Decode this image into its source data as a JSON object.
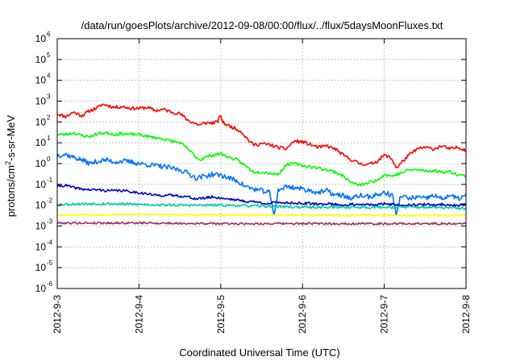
{
  "chart_data": {
    "type": "line",
    "title": "/data/run/goesPlots/archive/2012-09-08/00:00/flux/../flux/5daysMoonFluxes.txt",
    "xlabel": "Coordinated Universal Time (UTC)",
    "ylabel": "protons/cm2-s-sr-MeV",
    "ylabel_parts": {
      "base": "protons/cm",
      "sup": "2",
      "rest": "-s-sr-MeV"
    },
    "yscale": "log",
    "ylim": [
      1e-06,
      1000000.0
    ],
    "xlim": [
      0,
      5
    ],
    "grid": true,
    "y_ticks": [
      {
        "value": 1e-06,
        "base": "10",
        "exp": "-6"
      },
      {
        "value": 1e-05,
        "base": "10",
        "exp": "-5"
      },
      {
        "value": 0.0001,
        "base": "10",
        "exp": "-4"
      },
      {
        "value": 0.001,
        "base": "10",
        "exp": "-3"
      },
      {
        "value": 0.01,
        "base": "10",
        "exp": "-2"
      },
      {
        "value": 0.1,
        "base": "10",
        "exp": "-1"
      },
      {
        "value": 1,
        "base": "10",
        "exp": "0"
      },
      {
        "value": 10.0,
        "base": "10",
        "exp": "1"
      },
      {
        "value": 100.0,
        "base": "10",
        "exp": "2"
      },
      {
        "value": 1000.0,
        "base": "10",
        "exp": "3"
      },
      {
        "value": 10000.0,
        "base": "10",
        "exp": "4"
      },
      {
        "value": 100000.0,
        "base": "10",
        "exp": "5"
      },
      {
        "value": 1000000.0,
        "base": "10",
        "exp": "6"
      }
    ],
    "x_ticks": [
      {
        "value": 0,
        "label": "2012-9-3"
      },
      {
        "value": 1,
        "label": "2012-9-4"
      },
      {
        "value": 2,
        "label": "2012-9-5"
      },
      {
        "value": 3,
        "label": "2012-9-6"
      },
      {
        "value": 4,
        "label": "2012-9-7"
      },
      {
        "value": 5,
        "label": "2012-9-8"
      }
    ],
    "series": [
      {
        "color": "#ff0000",
        "width": 1.6,
        "noise": 0.08,
        "seed": 11,
        "points": [
          [
            0,
            250
          ],
          [
            0.1,
            180
          ],
          [
            0.2,
            300
          ],
          [
            0.3,
            200
          ],
          [
            0.4,
            350
          ],
          [
            0.5,
            500
          ],
          [
            0.55,
            700
          ],
          [
            0.6,
            650
          ],
          [
            0.7,
            500
          ],
          [
            0.8,
            550
          ],
          [
            0.9,
            450
          ],
          [
            1.0,
            450
          ],
          [
            1.1,
            500
          ],
          [
            1.2,
            350
          ],
          [
            1.3,
            400
          ],
          [
            1.4,
            300
          ],
          [
            1.5,
            250
          ],
          [
            1.6,
            120
          ],
          [
            1.7,
            80
          ],
          [
            1.75,
            70
          ],
          [
            1.8,
            90
          ],
          [
            1.9,
            90
          ],
          [
            1.96,
            100
          ],
          [
            2.0,
            220
          ],
          [
            2.02,
            100
          ],
          [
            2.08,
            70
          ],
          [
            2.15,
            55
          ],
          [
            2.25,
            35
          ],
          [
            2.3,
            20
          ],
          [
            2.35,
            12
          ],
          [
            2.4,
            8
          ],
          [
            2.5,
            9
          ],
          [
            2.6,
            8
          ],
          [
            2.7,
            6
          ],
          [
            2.8,
            5
          ],
          [
            2.85,
            8
          ],
          [
            2.9,
            12
          ],
          [
            3.0,
            11
          ],
          [
            3.1,
            8
          ],
          [
            3.2,
            6
          ],
          [
            3.3,
            7
          ],
          [
            3.4,
            5
          ],
          [
            3.5,
            2.5
          ],
          [
            3.6,
            1.5
          ],
          [
            3.7,
            1.0
          ],
          [
            3.8,
            0.9
          ],
          [
            3.9,
            1.2
          ],
          [
            4.0,
            2.5
          ],
          [
            4.05,
            2.2
          ],
          [
            4.1,
            1.5
          ],
          [
            4.15,
            0.6
          ],
          [
            4.2,
            1.0
          ],
          [
            4.3,
            2.5
          ],
          [
            4.4,
            5
          ],
          [
            4.5,
            6
          ],
          [
            4.6,
            5
          ],
          [
            4.7,
            7
          ],
          [
            4.8,
            5
          ],
          [
            4.9,
            6
          ],
          [
            5.0,
            4.5
          ]
        ]
      },
      {
        "color": "#00ff00",
        "width": 1.6,
        "noise": 0.07,
        "seed": 23,
        "points": [
          [
            0,
            25
          ],
          [
            0.1,
            25
          ],
          [
            0.2,
            30
          ],
          [
            0.3,
            22
          ],
          [
            0.4,
            20
          ],
          [
            0.5,
            28
          ],
          [
            0.6,
            30
          ],
          [
            0.7,
            25
          ],
          [
            0.8,
            28
          ],
          [
            0.9,
            25
          ],
          [
            1.0,
            25
          ],
          [
            1.1,
            20
          ],
          [
            1.2,
            18
          ],
          [
            1.3,
            15
          ],
          [
            1.4,
            12
          ],
          [
            1.5,
            10
          ],
          [
            1.6,
            5
          ],
          [
            1.7,
            2
          ],
          [
            1.75,
            1.5
          ],
          [
            1.8,
            2
          ],
          [
            1.9,
            2.5
          ],
          [
            2.0,
            3
          ],
          [
            2.1,
            2
          ],
          [
            2.2,
            1.5
          ],
          [
            2.3,
            0.8
          ],
          [
            2.4,
            0.4
          ],
          [
            2.5,
            0.4
          ],
          [
            2.6,
            0.35
          ],
          [
            2.7,
            0.3
          ],
          [
            2.75,
            0.5
          ],
          [
            2.8,
            0.9
          ],
          [
            2.9,
            1.0
          ],
          [
            3.0,
            0.8
          ],
          [
            3.1,
            0.7
          ],
          [
            3.2,
            0.6
          ],
          [
            3.3,
            0.5
          ],
          [
            3.4,
            0.4
          ],
          [
            3.5,
            0.25
          ],
          [
            3.6,
            0.12
          ],
          [
            3.7,
            0.09
          ],
          [
            3.8,
            0.12
          ],
          [
            3.9,
            0.15
          ],
          [
            4.0,
            0.3
          ],
          [
            4.1,
            0.25
          ],
          [
            4.2,
            0.35
          ],
          [
            4.3,
            0.5
          ],
          [
            4.4,
            0.5
          ],
          [
            4.5,
            0.45
          ],
          [
            4.6,
            0.45
          ],
          [
            4.7,
            0.4
          ],
          [
            4.8,
            0.4
          ],
          [
            4.9,
            0.3
          ],
          [
            5.0,
            0.25
          ]
        ]
      },
      {
        "color": "#0070ff",
        "width": 1.6,
        "noise": 0.12,
        "seed": 37,
        "points": [
          [
            0,
            2.5
          ],
          [
            0.1,
            2.8
          ],
          [
            0.2,
            2.0
          ],
          [
            0.3,
            1.5
          ],
          [
            0.4,
            1.0
          ],
          [
            0.5,
            1.3
          ],
          [
            0.6,
            1.5
          ],
          [
            0.7,
            1.2
          ],
          [
            0.8,
            1.3
          ],
          [
            0.9,
            1.2
          ],
          [
            1.0,
            1.0
          ],
          [
            1.1,
            0.9
          ],
          [
            1.2,
            0.8
          ],
          [
            1.3,
            0.7
          ],
          [
            1.4,
            0.6
          ],
          [
            1.5,
            0.5
          ],
          [
            1.6,
            0.35
          ],
          [
            1.7,
            0.2
          ],
          [
            1.8,
            0.25
          ],
          [
            1.9,
            0.3
          ],
          [
            2.0,
            0.28
          ],
          [
            2.1,
            0.2
          ],
          [
            2.2,
            0.15
          ],
          [
            2.3,
            0.08
          ],
          [
            2.4,
            0.06
          ],
          [
            2.5,
            0.05
          ],
          [
            2.6,
            0.04
          ],
          [
            2.65,
            0.003
          ],
          [
            2.7,
            0.05
          ],
          [
            2.8,
            0.08
          ],
          [
            2.9,
            0.07
          ],
          [
            3.0,
            0.06
          ],
          [
            3.1,
            0.05
          ],
          [
            3.2,
            0.04
          ],
          [
            3.3,
            0.05
          ],
          [
            3.4,
            0.03
          ],
          [
            3.5,
            0.03
          ],
          [
            3.6,
            0.02
          ],
          [
            3.7,
            0.03
          ],
          [
            3.8,
            0.025
          ],
          [
            3.9,
            0.03
          ],
          [
            4.0,
            0.04
          ],
          [
            4.1,
            0.03
          ],
          [
            4.15,
            0.003
          ],
          [
            4.2,
            0.03
          ],
          [
            4.3,
            0.02
          ],
          [
            4.4,
            0.025
          ],
          [
            4.5,
            0.02
          ],
          [
            4.6,
            0.03
          ],
          [
            4.7,
            0.02
          ],
          [
            4.8,
            0.03
          ],
          [
            4.9,
            0.02
          ],
          [
            5.0,
            0.03
          ]
        ]
      },
      {
        "color": "#0000cc",
        "width": 1.6,
        "noise": 0.06,
        "seed": 41,
        "points": [
          [
            0,
            0.08
          ],
          [
            0.1,
            0.09
          ],
          [
            0.2,
            0.07
          ],
          [
            0.3,
            0.06
          ],
          [
            0.4,
            0.055
          ],
          [
            0.5,
            0.055
          ],
          [
            0.6,
            0.05
          ],
          [
            0.7,
            0.05
          ],
          [
            0.8,
            0.05
          ],
          [
            0.9,
            0.045
          ],
          [
            1.0,
            0.04
          ],
          [
            1.1,
            0.035
          ],
          [
            1.2,
            0.03
          ],
          [
            1.3,
            0.03
          ],
          [
            1.4,
            0.03
          ],
          [
            1.5,
            0.028
          ],
          [
            1.6,
            0.025
          ],
          [
            1.7,
            0.02
          ],
          [
            1.8,
            0.022
          ],
          [
            1.9,
            0.025
          ],
          [
            2.0,
            0.022
          ],
          [
            2.1,
            0.02
          ],
          [
            2.2,
            0.018
          ],
          [
            2.3,
            0.015
          ],
          [
            2.4,
            0.015
          ],
          [
            2.5,
            0.013
          ],
          [
            2.6,
            0.012
          ],
          [
            2.7,
            0.014
          ],
          [
            2.8,
            0.013
          ],
          [
            2.9,
            0.013
          ],
          [
            3.0,
            0.012
          ],
          [
            3.1,
            0.012
          ],
          [
            3.2,
            0.011
          ],
          [
            3.3,
            0.012
          ],
          [
            3.4,
            0.011
          ],
          [
            3.5,
            0.01
          ],
          [
            3.6,
            0.011
          ],
          [
            3.7,
            0.01
          ],
          [
            3.8,
            0.011
          ],
          [
            3.9,
            0.01
          ],
          [
            4.0,
            0.012
          ],
          [
            4.1,
            0.011
          ],
          [
            4.2,
            0.01
          ],
          [
            4.3,
            0.011
          ],
          [
            4.4,
            0.01
          ],
          [
            4.5,
            0.011
          ],
          [
            4.6,
            0.01
          ],
          [
            4.7,
            0.011
          ],
          [
            4.8,
            0.01
          ],
          [
            4.9,
            0.01
          ],
          [
            5.0,
            0.011
          ]
        ]
      },
      {
        "color": "#00ccaa",
        "width": 1.6,
        "noise": 0.06,
        "seed": 53,
        "points": [
          [
            0,
            0.011
          ],
          [
            0.5,
            0.012
          ],
          [
            1.0,
            0.011
          ],
          [
            1.5,
            0.01
          ],
          [
            2.0,
            0.01
          ],
          [
            2.5,
            0.009
          ],
          [
            3.0,
            0.008
          ],
          [
            3.5,
            0.008
          ],
          [
            4.0,
            0.008
          ],
          [
            4.5,
            0.008
          ],
          [
            5.0,
            0.007
          ]
        ]
      },
      {
        "color": "#ffff00",
        "width": 1.6,
        "noise": 0.04,
        "seed": 67,
        "points": [
          [
            0,
            0.0035
          ],
          [
            1.0,
            0.0035
          ],
          [
            2.0,
            0.0034
          ],
          [
            3.0,
            0.0033
          ],
          [
            4.0,
            0.0033
          ],
          [
            5.0,
            0.0033
          ]
        ]
      },
      {
        "color": "#993366",
        "width": 1.6,
        "noise": 0.05,
        "seed": 79,
        "points": [
          [
            0,
            0.0014
          ],
          [
            1.0,
            0.0014
          ],
          [
            2.0,
            0.0013
          ],
          [
            3.0,
            0.0013
          ],
          [
            4.0,
            0.0013
          ],
          [
            5.0,
            0.0013
          ]
        ]
      }
    ]
  }
}
